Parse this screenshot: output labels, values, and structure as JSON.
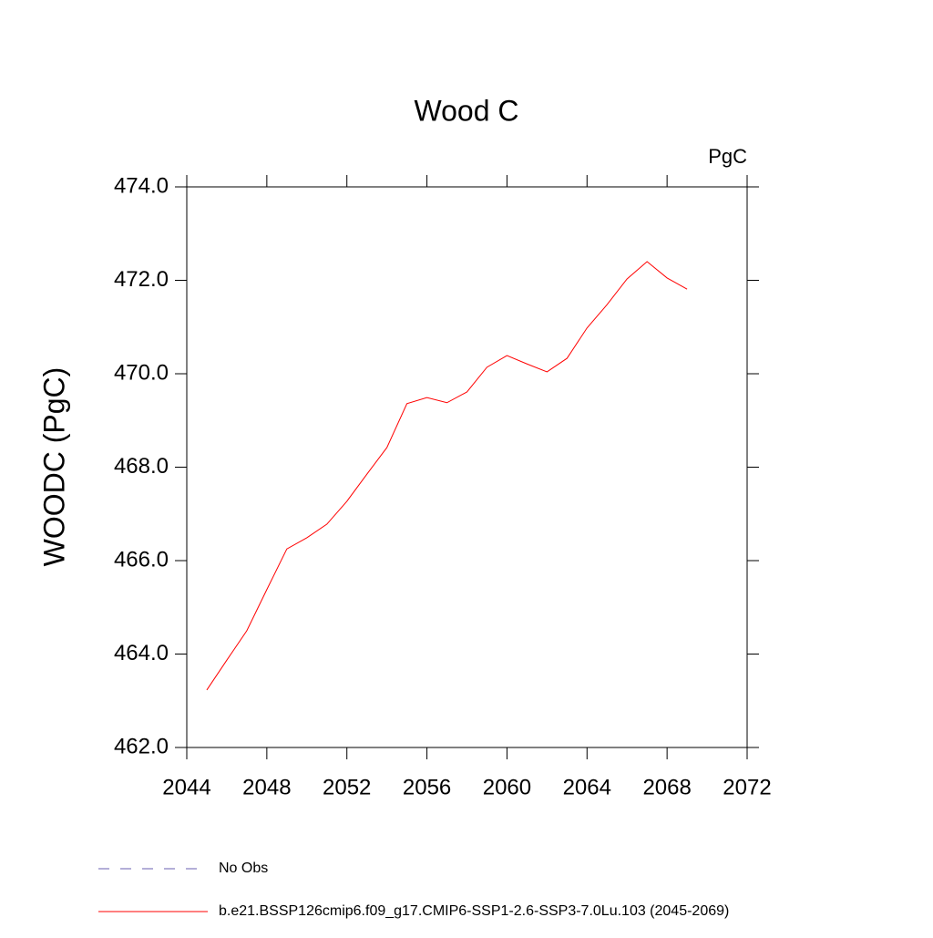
{
  "chart_data": {
    "type": "line",
    "title": "Wood C",
    "units_label": "PgC",
    "ylabel": "WOODC  (PgC)",
    "x": [
      2045,
      2046,
      2047,
      2048,
      2049,
      2050,
      2051,
      2052,
      2053,
      2054,
      2055,
      2056,
      2057,
      2058,
      2059,
      2060,
      2061,
      2062,
      2063,
      2064,
      2065,
      2066,
      2067,
      2068,
      2069
    ],
    "series": [
      {
        "name": "No Obs",
        "color": "#6a5fb0",
        "dashed": true,
        "values": [
          null,
          null,
          null,
          null,
          null,
          null,
          null,
          null,
          null,
          null,
          null,
          null,
          null,
          null,
          null,
          null,
          null,
          null,
          null,
          null,
          null,
          null,
          null,
          null,
          null
        ]
      },
      {
        "name": "b.e21.BSSP126cmip6.f09_g17.CMIP6-SSP1-2.6-SSP3-7.0Lu.103 (2045-2069)",
        "color": "#ff0000",
        "dashed": false,
        "values": [
          463.23,
          463.87,
          464.5,
          465.38,
          466.25,
          466.49,
          466.78,
          467.27,
          467.85,
          468.42,
          469.36,
          469.49,
          469.38,
          469.61,
          470.14,
          470.39,
          470.21,
          470.04,
          470.33,
          470.98,
          471.48,
          472.03,
          472.4,
          472.05,
          471.81
        ]
      }
    ],
    "xlim": [
      2044,
      2072
    ],
    "xticks": [
      2044,
      2048,
      2052,
      2056,
      2060,
      2064,
      2068,
      2072
    ],
    "ylim": [
      462,
      474
    ],
    "yticks": [
      {
        "value": 462,
        "label": "462.0"
      },
      {
        "value": 464,
        "label": "464.0"
      },
      {
        "value": 466,
        "label": "466.0"
      },
      {
        "value": 468,
        "label": "468.0"
      },
      {
        "value": 470,
        "label": "470.0"
      },
      {
        "value": 472,
        "label": "472.0"
      },
      {
        "value": 474,
        "label": "474.0"
      }
    ],
    "grid": false,
    "legend": "bottom"
  }
}
